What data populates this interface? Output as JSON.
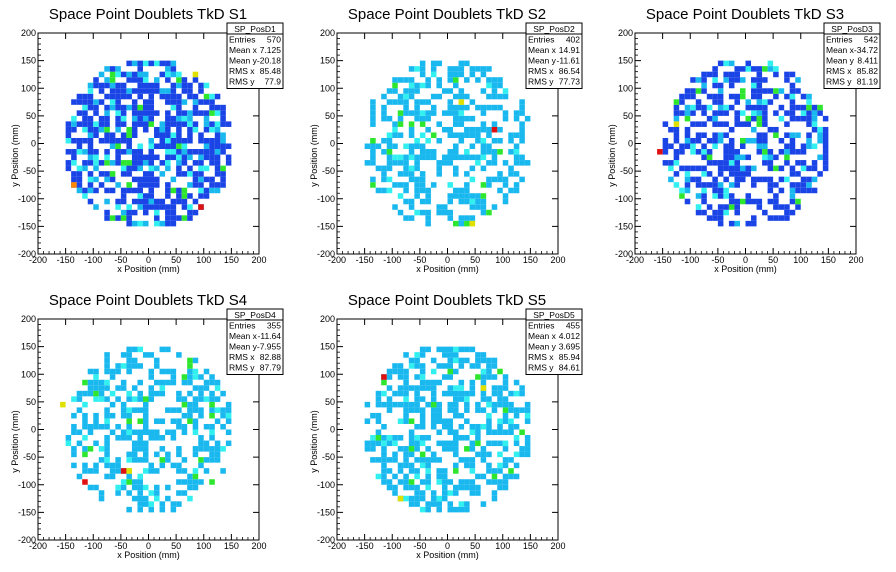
{
  "chart_data": [
    {
      "type": "heatmap",
      "title": "Space Point Doublets TkD S1",
      "xlabel": "x Position (mm)",
      "ylabel": "y Position (mm)",
      "xlim": [
        -200,
        200
      ],
      "ylim": [
        -200,
        200
      ],
      "xticks": [
        "-200",
        "-150",
        "-100",
        "-50",
        "0",
        "50",
        "100",
        "150",
        "200"
      ],
      "yticks": [
        "-200",
        "-150",
        "-100",
        "-50",
        "0",
        "50",
        "100",
        "150",
        "200"
      ],
      "grid": false,
      "stats": {
        "name": "SP_PosD1",
        "rows": [
          {
            "label": "Entries",
            "value": "570"
          },
          {
            "label": "Mean x",
            "value": "7.125"
          },
          {
            "label": "Mean y",
            "value": "-20.18"
          },
          {
            "label": "RMS x",
            "value": "85.48"
          },
          {
            "label": "RMS y",
            "value": "77.9"
          }
        ]
      },
      "dominant_color": "#1a44e6",
      "density": 0.7,
      "hotspots": [
        [
          90,
          -120,
          "#e01010"
        ],
        [
          -140,
          -75,
          "#ff8800"
        ],
        [
          80,
          120,
          "#e0e000"
        ]
      ]
    },
    {
      "type": "heatmap",
      "title": "Space Point Doublets TkD S2",
      "xlabel": "x Position (mm)",
      "ylabel": "y Position (mm)",
      "xlim": [
        -200,
        200
      ],
      "ylim": [
        -200,
        200
      ],
      "xticks": [
        "-200",
        "-150",
        "-100",
        "-50",
        "0",
        "50",
        "100",
        "150",
        "200"
      ],
      "yticks": [
        "-200",
        "-150",
        "-100",
        "-50",
        "0",
        "50",
        "100",
        "150",
        "200"
      ],
      "grid": false,
      "stats": {
        "name": "SP_PosD2",
        "rows": [
          {
            "label": "Entries",
            "value": "402"
          },
          {
            "label": "Mean x",
            "value": "14.91"
          },
          {
            "label": "Mean y",
            "value": "-11.61"
          },
          {
            "label": "RMS x",
            "value": "86.54"
          },
          {
            "label": "RMS y",
            "value": "77.73"
          }
        ]
      },
      "dominant_color": "#19b8ee",
      "density": 0.5,
      "hotspots": [
        [
          80,
          20,
          "#e01010"
        ],
        [
          20,
          70,
          "#e0e000"
        ],
        [
          40,
          -150,
          "#e0e000"
        ]
      ]
    },
    {
      "type": "heatmap",
      "title": "Space Point Doublets TkD S3",
      "xlabel": "x Position (mm)",
      "ylabel": "y Position (mm)",
      "xlim": [
        -200,
        200
      ],
      "ylim": [
        -200,
        200
      ],
      "xticks": [
        "-200",
        "-150",
        "-100",
        "-50",
        "0",
        "50",
        "100",
        "150",
        "200"
      ],
      "yticks": [
        "-200",
        "-150",
        "-100",
        "-50",
        "0",
        "50",
        "100",
        "150",
        "200"
      ],
      "grid": false,
      "stats": {
        "name": "SP_PosD3",
        "rows": [
          {
            "label": "Entries",
            "value": "542"
          },
          {
            "label": "Mean x",
            "value": "-34.72"
          },
          {
            "label": "Mean y",
            "value": "8.411"
          },
          {
            "label": "RMS x",
            "value": "85.82"
          },
          {
            "label": "RMS y",
            "value": "81.19"
          }
        ]
      },
      "dominant_color": "#1a44e6",
      "density": 0.55,
      "hotspots": [
        [
          -160,
          -15,
          "#e01010"
        ],
        [
          -130,
          30,
          "#e0e000"
        ]
      ]
    },
    {
      "type": "heatmap",
      "title": "Space Point Doublets TkD S4",
      "xlabel": "x Position (mm)",
      "ylabel": "y Position (mm)",
      "xlim": [
        -200,
        200
      ],
      "ylim": [
        -200,
        200
      ],
      "xticks": [
        "-200",
        "-150",
        "-100",
        "-50",
        "0",
        "50",
        "100",
        "150",
        "200"
      ],
      "yticks": [
        "-200",
        "-150",
        "-100",
        "-50",
        "0",
        "50",
        "100",
        "150",
        "200"
      ],
      "grid": false,
      "stats": {
        "name": "SP_PosD4",
        "rows": [
          {
            "label": "Entries",
            "value": "355"
          },
          {
            "label": "Mean x",
            "value": "-11.64"
          },
          {
            "label": "Mean y",
            "value": "-7.955"
          },
          {
            "label": "RMS x",
            "value": "82.88"
          },
          {
            "label": "RMS y",
            "value": "87.79"
          }
        ]
      },
      "dominant_color": "#19b8ee",
      "density": 0.45,
      "hotspots": [
        [
          -120,
          -100,
          "#e01010"
        ],
        [
          -50,
          -75,
          "#e01010"
        ],
        [
          -40,
          -75,
          "#e0e000"
        ],
        [
          -160,
          40,
          "#e0e000"
        ]
      ]
    },
    {
      "type": "heatmap",
      "title": "Space Point Doublets TkD S5",
      "xlabel": "x Position (mm)",
      "ylabel": "y Position (mm)",
      "xlim": [
        -200,
        200
      ],
      "ylim": [
        -200,
        200
      ],
      "xticks": [
        "-200",
        "-150",
        "-100",
        "-50",
        "0",
        "50",
        "100",
        "150",
        "200"
      ],
      "yticks": [
        "-200",
        "-150",
        "-100",
        "-50",
        "0",
        "50",
        "100",
        "150",
        "200"
      ],
      "grid": false,
      "stats": {
        "name": "SP_PosD5",
        "rows": [
          {
            "label": "Entries",
            "value": "455"
          },
          {
            "label": "Mean x",
            "value": "4.012"
          },
          {
            "label": "Mean y",
            "value": "3.695"
          },
          {
            "label": "RMS x",
            "value": "85.94"
          },
          {
            "label": "RMS y",
            "value": "84.61"
          }
        ]
      },
      "dominant_color": "#19b8ee",
      "density": 0.55,
      "hotspots": [
        [
          -120,
          95,
          "#e01010"
        ],
        [
          60,
          75,
          "#e0e000"
        ],
        [
          -90,
          -130,
          "#e0e000"
        ]
      ]
    }
  ],
  "palette": {
    "blue": "#1a44e6",
    "light_blue": "#19b8ee",
    "cyan": "#33f0f0",
    "green": "#2ee62e",
    "yellow": "#e0e000",
    "orange": "#ff8800",
    "red": "#e01010"
  }
}
